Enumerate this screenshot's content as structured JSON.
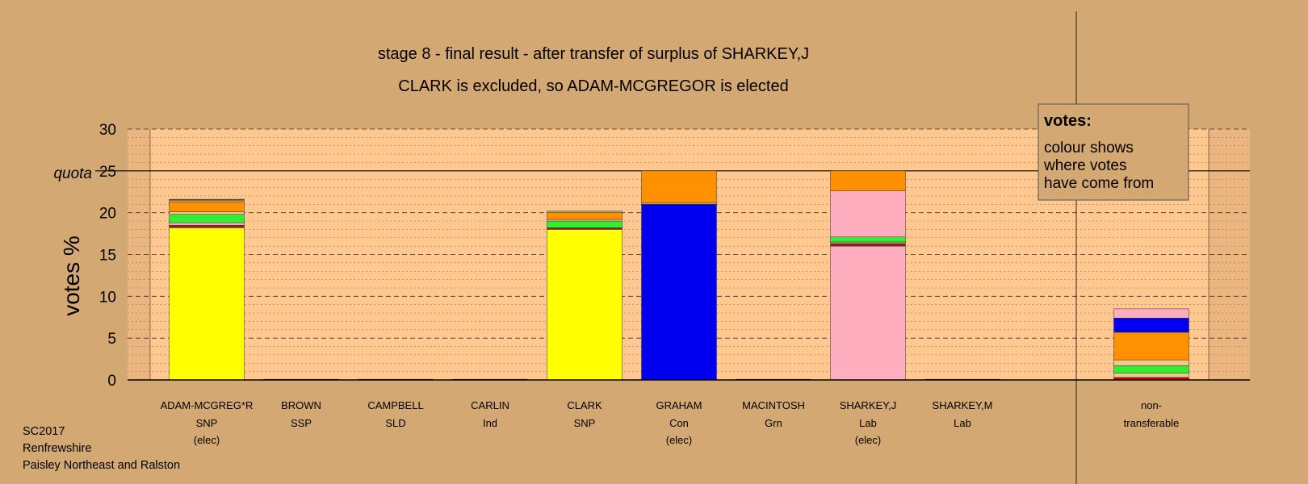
{
  "chart_data": {
    "type": "bar",
    "stacked": true,
    "title": "stage 8 - final result - after transfer of surplus of SHARKEY,J",
    "subtitle": "CLARK is excluded, so ADAM-MCGREGOR is elected",
    "ylabel": "votes %",
    "ylim": [
      0,
      30
    ],
    "yticks": [
      0,
      5,
      10,
      15,
      20,
      25,
      30
    ],
    "quota": {
      "label": "quota",
      "value": 25
    },
    "grid": true,
    "categories": [
      {
        "name": "ADAM-MCGREG*R",
        "party": "SNP",
        "status": "(elec)"
      },
      {
        "name": "BROWN",
        "party": "SSP",
        "status": ""
      },
      {
        "name": "CAMPBELL",
        "party": "SLD",
        "status": ""
      },
      {
        "name": "CARLIN",
        "party": "Ind",
        "status": ""
      },
      {
        "name": "CLARK",
        "party": "SNP",
        "status": ""
      },
      {
        "name": "GRAHAM",
        "party": "Con",
        "status": "(elec)"
      },
      {
        "name": "MACINTOSH",
        "party": "Grn",
        "status": ""
      },
      {
        "name": "SHARKEY,J",
        "party": "Lab",
        "status": "(elec)"
      },
      {
        "name": "SHARKEY,M",
        "party": "Lab",
        "status": ""
      }
    ],
    "nontransferable": {
      "line1": "non-",
      "line2": "transferable"
    },
    "colors": {
      "snp": "#ffff00",
      "ssp": "#cc0000",
      "sld": "#f5c88a",
      "ind": "#8b2323",
      "grn": "#33ee33",
      "con": "#0000ee",
      "lab": "#ffaec0",
      "orange": "#ff9000",
      "line": "#ccaa55"
    },
    "bars": [
      {
        "segments": [
          {
            "color": "snp",
            "value": 18.2
          },
          {
            "color": "ind",
            "value": 0.3
          },
          {
            "color": "lab",
            "value": 0.3
          },
          {
            "color": "grn",
            "value": 1.0
          },
          {
            "color": "sld",
            "value": 0.3
          },
          {
            "color": "orange",
            "value": 1.2
          },
          {
            "color": "line",
            "value": 0.2
          },
          {
            "color": "ind",
            "value": 0.1
          }
        ]
      },
      {
        "segments": []
      },
      {
        "segments": []
      },
      {
        "segments": []
      },
      {
        "segments": [
          {
            "color": "snp",
            "value": 18.0
          },
          {
            "color": "ind",
            "value": 0.2
          },
          {
            "color": "grn",
            "value": 0.8
          },
          {
            "color": "sld",
            "value": 0.2
          },
          {
            "color": "orange",
            "value": 0.8
          },
          {
            "color": "line",
            "value": 0.2
          }
        ]
      },
      {
        "segments": [
          {
            "color": "con",
            "value": 21.0
          },
          {
            "color": "line",
            "value": 0.2
          },
          {
            "color": "orange",
            "value": 3.8
          }
        ]
      },
      {
        "segments": []
      },
      {
        "segments": [
          {
            "color": "lab",
            "value": 16.0
          },
          {
            "color": "ind",
            "value": 0.3
          },
          {
            "color": "line",
            "value": 0.2
          },
          {
            "color": "grn",
            "value": 0.6
          },
          {
            "color": "lab",
            "value": 5.5
          },
          {
            "color": "orange",
            "value": 2.4
          }
        ]
      },
      {
        "segments": []
      }
    ],
    "nontransferable_bar": {
      "segments": [
        {
          "color": "ssp",
          "value": 0.3
        },
        {
          "color": "sld",
          "value": 0.5
        },
        {
          "color": "grn",
          "value": 0.9
        },
        {
          "color": "sld",
          "value": 0.7
        },
        {
          "color": "orange",
          "value": 3.3
        },
        {
          "color": "con",
          "value": 1.7
        },
        {
          "color": "lab",
          "value": 1.1
        }
      ]
    }
  },
  "legend": {
    "heading": "votes:",
    "lines": [
      "colour shows",
      "where votes",
      "have come from"
    ]
  },
  "footer": {
    "lines": [
      "SC2017",
      "Renfrewshire",
      "Paisley Northeast and Ralston"
    ]
  }
}
